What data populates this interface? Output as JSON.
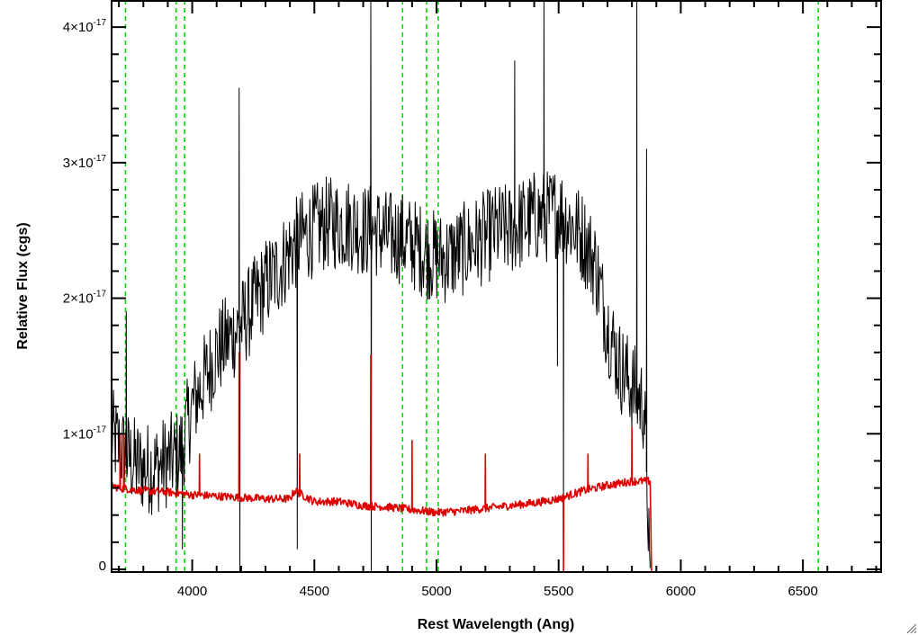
{
  "chart_data": {
    "type": "line",
    "title": "",
    "xlabel": "Rest Wavelength (Ang)",
    "ylabel": "Relative Flux (cgs)",
    "xlim": [
      3670,
      6820
    ],
    "ylim": [
      -2e-19,
      4.2e-17
    ],
    "x_ticks": [
      {
        "value": 4000,
        "label": "4000"
      },
      {
        "value": 4500,
        "label": "4500"
      },
      {
        "value": 5000,
        "label": "5000"
      },
      {
        "value": 5500,
        "label": "5500"
      },
      {
        "value": 6000,
        "label": "6000"
      },
      {
        "value": 6500,
        "label": "6500"
      }
    ],
    "y_ticks": [
      {
        "value": 0,
        "mant": "0",
        "exp": ""
      },
      {
        "value": 1e-17,
        "mant": "1×10",
        "exp": "-17"
      },
      {
        "value": 2e-17,
        "mant": "2×10",
        "exp": "-17"
      },
      {
        "value": 3e-17,
        "mant": "3×10",
        "exp": "-17"
      },
      {
        "value": 4e-17,
        "mant": "4×10",
        "exp": "-17"
      }
    ],
    "x_minor_step": 100,
    "y_minor_step": 2e-18,
    "reference_lines": {
      "color": "#00dd00",
      "style": "dashed",
      "x": [
        3727,
        3934,
        3969,
        4861,
        4959,
        5007,
        6563
      ]
    },
    "series": [
      {
        "color": "#000000",
        "x": [
          3670,
          3700,
          3750,
          3800,
          3850,
          3900,
          3950,
          4000,
          4050,
          4100,
          4150,
          4200,
          4250,
          4300,
          4350,
          4400,
          4450,
          4500,
          4550,
          4600,
          4650,
          4700,
          4750,
          4800,
          4850,
          4900,
          4950,
          5000,
          5050,
          5100,
          5150,
          5200,
          5250,
          5300,
          5350,
          5400,
          5450,
          5500,
          5550,
          5600,
          5650,
          5700,
          5750,
          5800,
          5850,
          5875
        ],
        "values": [
          1e-17,
          9e-18,
          8e-18,
          7.5e-18,
          7.5e-18,
          8e-18,
          8.5e-18,
          1.2e-17,
          1.4e-17,
          1.6e-17,
          1.7e-17,
          1.8e-17,
          1.95e-17,
          2.1e-17,
          2.2e-17,
          2.35e-17,
          2.45e-17,
          2.5e-17,
          2.55e-17,
          2.55e-17,
          2.55e-17,
          2.5e-17,
          2.5e-17,
          2.45e-17,
          2.45e-17,
          2.4e-17,
          2.35e-17,
          2.3e-17,
          2.3e-17,
          2.35e-17,
          2.4e-17,
          2.45e-17,
          2.5e-17,
          2.5e-17,
          2.55e-17,
          2.6e-17,
          2.6e-17,
          2.65e-17,
          2.55e-17,
          2.45e-17,
          2.25e-17,
          1.8e-17,
          1.5e-17,
          1.35e-17,
          1.2e-17,
          0.0
        ],
        "noise": 3.5e-18,
        "spikes": [
          {
            "x": 3730,
            "y": 1.9e-17
          },
          {
            "x": 3960,
            "y": 1.5e-18
          },
          {
            "x": 4192,
            "y": 3.55e-17
          },
          {
            "x": 4195,
            "y": -2e-19
          },
          {
            "x": 4430,
            "y": 1.5e-18
          },
          {
            "x": 4731,
            "y": 4.2e-17
          },
          {
            "x": 4733,
            "y": -2e-19
          },
          {
            "x": 5320,
            "y": 3.75e-17
          },
          {
            "x": 5440,
            "y": 4.2e-17
          },
          {
            "x": 5495,
            "y": 1.5e-17
          },
          {
            "x": 5520,
            "y": 2e-18
          },
          {
            "x": 5820,
            "y": 4.2e-17
          },
          {
            "x": 5860,
            "y": 3.1e-17
          }
        ]
      },
      {
        "color": "#dd0000",
        "x": [
          3670,
          3700,
          3800,
          3900,
          4000,
          4100,
          4200,
          4300,
          4400,
          4420,
          4500,
          4600,
          4700,
          4800,
          4900,
          5000,
          5100,
          5200,
          5300,
          5400,
          5500,
          5600,
          5700,
          5800,
          5875,
          5880,
          6820
        ],
        "values": [
          6.2e-18,
          6e-18,
          5.8e-18,
          5.7e-18,
          5.5e-18,
          5.4e-18,
          5.3e-18,
          5.2e-18,
          5.2e-18,
          5.8e-18,
          5e-18,
          5e-18,
          4.7e-18,
          4.6e-18,
          4.4e-18,
          4.2e-18,
          4.3e-18,
          4.5e-18,
          4.7e-18,
          4.9e-18,
          5.2e-18,
          5.8e-18,
          6.2e-18,
          6.5e-18,
          6.5e-18,
          -2e-19,
          -2e-19
        ],
        "noise": 3e-19,
        "spikes": [
          {
            "x": 3705,
            "y": 1e-17
          },
          {
            "x": 3720,
            "y": 1e-17
          },
          {
            "x": 4030,
            "y": 8.5e-18
          },
          {
            "x": 4192,
            "y": 1.6e-17
          },
          {
            "x": 4440,
            "y": 8.5e-18
          },
          {
            "x": 4731,
            "y": 1.58e-17
          },
          {
            "x": 4900,
            "y": 9.5e-18
          },
          {
            "x": 5200,
            "y": 8.5e-18
          },
          {
            "x": 5520,
            "y": -2e-19
          },
          {
            "x": 5620,
            "y": 8.5e-18
          },
          {
            "x": 5800,
            "y": 1.05e-17
          }
        ]
      }
    ]
  }
}
